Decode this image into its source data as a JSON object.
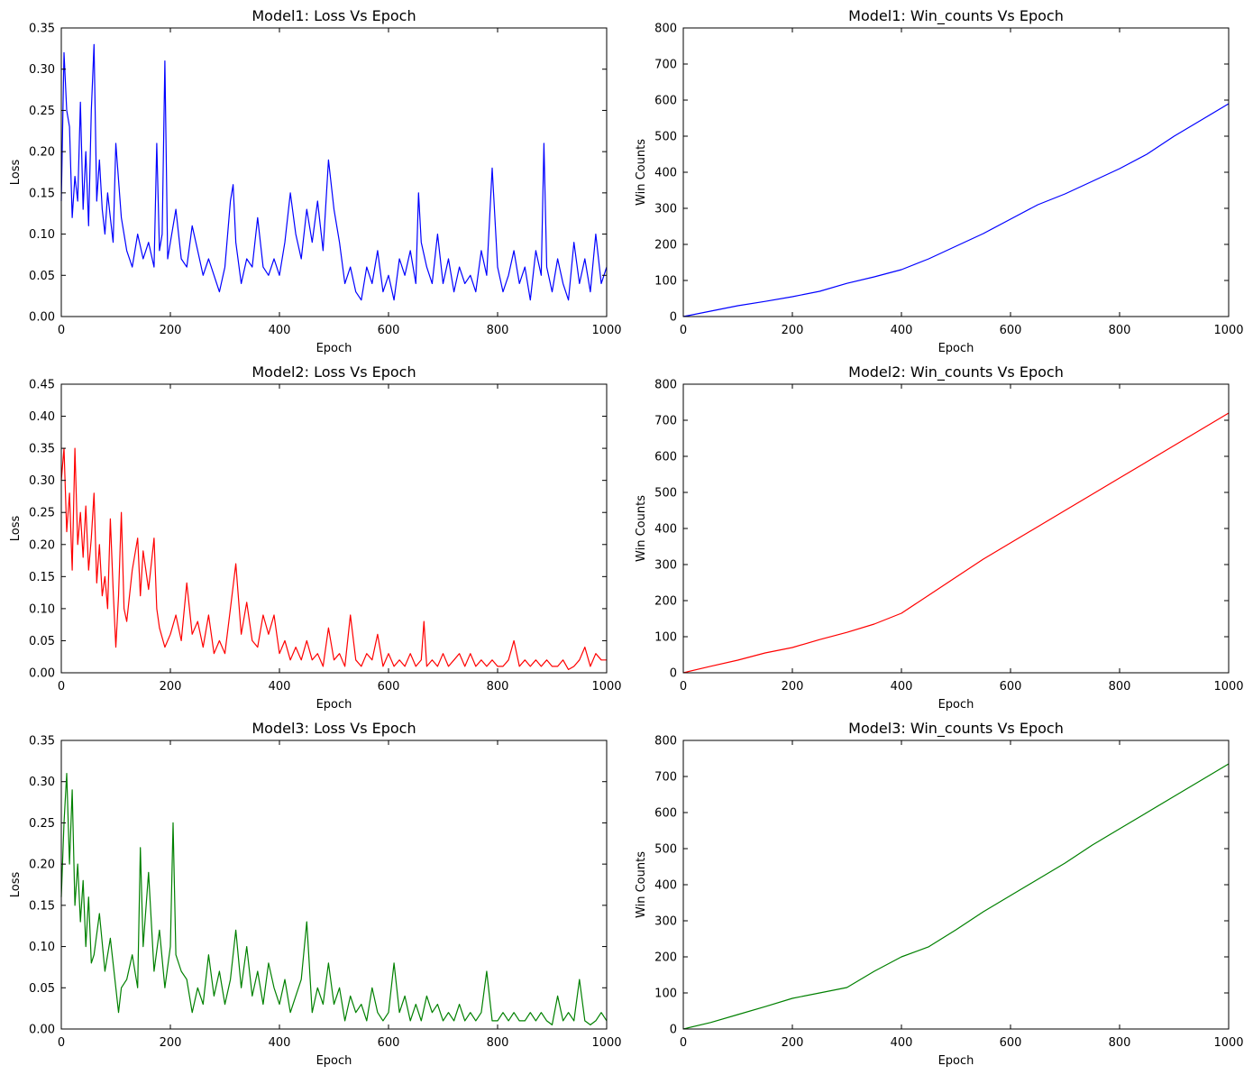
{
  "chart_data": [
    {
      "type": "line",
      "title": "Model1: Loss Vs Epoch",
      "xlabel": "Epoch",
      "ylabel": "Loss",
      "xlim": [
        0,
        1000
      ],
      "ylim": [
        0,
        0.35
      ],
      "xticks": [
        "0",
        "200",
        "400",
        "600",
        "800",
        "1000"
      ],
      "yticks": [
        "0.00",
        "0.05",
        "0.10",
        "0.15",
        "0.20",
        "0.25",
        "0.30",
        "0.35"
      ],
      "grid": false,
      "series": [
        {
          "color": "#0000ff",
          "x": [
            0,
            5,
            10,
            15,
            20,
            25,
            30,
            35,
            40,
            45,
            50,
            55,
            60,
            65,
            70,
            75,
            80,
            85,
            90,
            95,
            100,
            110,
            120,
            130,
            140,
            150,
            160,
            170,
            175,
            180,
            185,
            190,
            195,
            200,
            210,
            220,
            230,
            240,
            250,
            260,
            270,
            280,
            290,
            300,
            310,
            315,
            320,
            330,
            340,
            350,
            360,
            370,
            380,
            390,
            400,
            410,
            420,
            430,
            440,
            450,
            460,
            470,
            480,
            490,
            500,
            510,
            520,
            530,
            540,
            550,
            560,
            570,
            580,
            590,
            600,
            610,
            620,
            630,
            640,
            650,
            655,
            660,
            670,
            680,
            690,
            700,
            710,
            720,
            730,
            740,
            750,
            760,
            770,
            780,
            790,
            800,
            810,
            820,
            830,
            840,
            850,
            860,
            870,
            880,
            885,
            890,
            900,
            910,
            920,
            930,
            940,
            950,
            960,
            970,
            980,
            990,
            1000
          ],
          "y": [
            0.14,
            0.32,
            0.25,
            0.23,
            0.12,
            0.17,
            0.14,
            0.26,
            0.13,
            0.2,
            0.11,
            0.25,
            0.33,
            0.14,
            0.19,
            0.13,
            0.1,
            0.15,
            0.12,
            0.09,
            0.21,
            0.12,
            0.08,
            0.06,
            0.1,
            0.07,
            0.09,
            0.06,
            0.21,
            0.08,
            0.1,
            0.31,
            0.07,
            0.09,
            0.13,
            0.07,
            0.06,
            0.11,
            0.08,
            0.05,
            0.07,
            0.05,
            0.03,
            0.06,
            0.14,
            0.16,
            0.09,
            0.04,
            0.07,
            0.06,
            0.12,
            0.06,
            0.05,
            0.07,
            0.05,
            0.09,
            0.15,
            0.1,
            0.07,
            0.13,
            0.09,
            0.14,
            0.08,
            0.19,
            0.13,
            0.09,
            0.04,
            0.06,
            0.03,
            0.02,
            0.06,
            0.04,
            0.08,
            0.03,
            0.05,
            0.02,
            0.07,
            0.05,
            0.08,
            0.04,
            0.15,
            0.09,
            0.06,
            0.04,
            0.1,
            0.04,
            0.07,
            0.03,
            0.06,
            0.04,
            0.05,
            0.03,
            0.08,
            0.05,
            0.18,
            0.06,
            0.03,
            0.05,
            0.08,
            0.04,
            0.06,
            0.02,
            0.08,
            0.05,
            0.21,
            0.06,
            0.03,
            0.07,
            0.04,
            0.02,
            0.09,
            0.04,
            0.07,
            0.03,
            0.1,
            0.04,
            0.06
          ]
        }
      ]
    },
    {
      "type": "line",
      "title": "Model1: Win_counts Vs Epoch",
      "xlabel": "Epoch",
      "ylabel": "Win Counts",
      "xlim": [
        0,
        1000
      ],
      "ylim": [
        0,
        800
      ],
      "xticks": [
        "0",
        "200",
        "400",
        "600",
        "800",
        "1000"
      ],
      "yticks": [
        "0",
        "100",
        "200",
        "300",
        "400",
        "500",
        "600",
        "700",
        "800"
      ],
      "grid": false,
      "series": [
        {
          "color": "#0000ff",
          "x": [
            0,
            50,
            100,
            150,
            200,
            250,
            300,
            350,
            400,
            450,
            500,
            550,
            600,
            650,
            700,
            750,
            800,
            850,
            900,
            950,
            1000
          ],
          "y": [
            0,
            15,
            30,
            42,
            55,
            70,
            92,
            110,
            130,
            160,
            195,
            230,
            270,
            310,
            340,
            375,
            410,
            450,
            500,
            545,
            590
          ]
        }
      ]
    },
    {
      "type": "line",
      "title": "Model2: Loss Vs Epoch",
      "xlabel": "Epoch",
      "ylabel": "Loss",
      "xlim": [
        0,
        1000
      ],
      "ylim": [
        0,
        0.45
      ],
      "xticks": [
        "0",
        "200",
        "400",
        "600",
        "800",
        "1000"
      ],
      "yticks": [
        "0.00",
        "0.05",
        "0.10",
        "0.15",
        "0.20",
        "0.25",
        "0.30",
        "0.35",
        "0.40",
        "0.45"
      ],
      "grid": false,
      "series": [
        {
          "color": "#ff0000",
          "x": [
            0,
            5,
            10,
            15,
            20,
            25,
            30,
            35,
            40,
            45,
            50,
            55,
            60,
            65,
            70,
            75,
            80,
            85,
            90,
            95,
            100,
            105,
            110,
            115,
            120,
            130,
            140,
            145,
            150,
            160,
            170,
            175,
            180,
            190,
            200,
            210,
            220,
            230,
            240,
            250,
            260,
            270,
            280,
            290,
            300,
            310,
            320,
            330,
            340,
            350,
            360,
            370,
            380,
            390,
            400,
            410,
            420,
            430,
            440,
            450,
            460,
            470,
            480,
            490,
            500,
            510,
            520,
            530,
            540,
            550,
            560,
            570,
            580,
            590,
            600,
            610,
            620,
            630,
            640,
            650,
            660,
            665,
            670,
            680,
            690,
            700,
            710,
            720,
            730,
            740,
            750,
            760,
            770,
            780,
            790,
            800,
            810,
            820,
            830,
            840,
            850,
            860,
            870,
            880,
            890,
            900,
            910,
            920,
            930,
            940,
            950,
            960,
            970,
            980,
            990,
            1000
          ],
          "y": [
            0.3,
            0.35,
            0.22,
            0.28,
            0.16,
            0.35,
            0.2,
            0.25,
            0.18,
            0.26,
            0.16,
            0.21,
            0.28,
            0.14,
            0.2,
            0.12,
            0.15,
            0.1,
            0.24,
            0.13,
            0.04,
            0.12,
            0.25,
            0.1,
            0.08,
            0.16,
            0.21,
            0.12,
            0.19,
            0.13,
            0.21,
            0.1,
            0.07,
            0.04,
            0.06,
            0.09,
            0.05,
            0.14,
            0.06,
            0.08,
            0.04,
            0.09,
            0.03,
            0.05,
            0.03,
            0.1,
            0.17,
            0.06,
            0.11,
            0.05,
            0.04,
            0.09,
            0.06,
            0.09,
            0.03,
            0.05,
            0.02,
            0.04,
            0.02,
            0.05,
            0.02,
            0.03,
            0.01,
            0.07,
            0.02,
            0.03,
            0.01,
            0.09,
            0.02,
            0.01,
            0.03,
            0.02,
            0.06,
            0.01,
            0.03,
            0.01,
            0.02,
            0.01,
            0.03,
            0.01,
            0.02,
            0.08,
            0.01,
            0.02,
            0.01,
            0.03,
            0.01,
            0.02,
            0.03,
            0.01,
            0.03,
            0.01,
            0.02,
            0.01,
            0.02,
            0.01,
            0.01,
            0.02,
            0.05,
            0.01,
            0.02,
            0.01,
            0.02,
            0.01,
            0.02,
            0.01,
            0.01,
            0.02,
            0.005,
            0.01,
            0.02,
            0.04,
            0.01,
            0.03,
            0.02,
            0.02
          ]
        }
      ]
    },
    {
      "type": "line",
      "title": "Model2: Win_counts Vs Epoch",
      "xlabel": "Epoch",
      "ylabel": "Win Counts",
      "xlim": [
        0,
        1000
      ],
      "ylim": [
        0,
        800
      ],
      "xticks": [
        "0",
        "200",
        "400",
        "600",
        "800",
        "1000"
      ],
      "yticks": [
        "0",
        "100",
        "200",
        "300",
        "400",
        "500",
        "600",
        "700",
        "800"
      ],
      "grid": false,
      "series": [
        {
          "color": "#ff0000",
          "x": [
            0,
            50,
            100,
            150,
            200,
            250,
            300,
            350,
            400,
            450,
            500,
            550,
            600,
            650,
            700,
            750,
            800,
            850,
            900,
            950,
            1000
          ],
          "y": [
            0,
            18,
            35,
            55,
            70,
            92,
            112,
            135,
            165,
            215,
            265,
            315,
            360,
            405,
            450,
            495,
            540,
            585,
            630,
            675,
            720
          ]
        }
      ]
    },
    {
      "type": "line",
      "title": "Model3: Loss Vs Epoch",
      "xlabel": "Epoch",
      "ylabel": "Loss",
      "xlim": [
        0,
        1000
      ],
      "ylim": [
        0,
        0.35
      ],
      "xticks": [
        "0",
        "200",
        "400",
        "600",
        "800",
        "1000"
      ],
      "yticks": [
        "0.00",
        "0.05",
        "0.10",
        "0.15",
        "0.20",
        "0.25",
        "0.30",
        "0.35"
      ],
      "grid": false,
      "series": [
        {
          "color": "#008000",
          "x": [
            0,
            5,
            10,
            15,
            20,
            25,
            30,
            35,
            40,
            45,
            50,
            55,
            60,
            70,
            80,
            90,
            100,
            105,
            110,
            120,
            130,
            140,
            145,
            150,
            160,
            170,
            180,
            190,
            200,
            205,
            210,
            220,
            230,
            240,
            250,
            260,
            270,
            280,
            290,
            300,
            310,
            320,
            330,
            340,
            350,
            360,
            370,
            380,
            390,
            400,
            410,
            420,
            430,
            440,
            450,
            460,
            470,
            480,
            490,
            500,
            510,
            520,
            530,
            540,
            550,
            560,
            570,
            580,
            590,
            600,
            610,
            620,
            630,
            640,
            650,
            660,
            670,
            680,
            690,
            700,
            710,
            720,
            730,
            740,
            750,
            760,
            770,
            780,
            790,
            800,
            810,
            820,
            830,
            840,
            850,
            860,
            870,
            880,
            890,
            900,
            910,
            920,
            930,
            940,
            950,
            960,
            970,
            980,
            990,
            1000
          ],
          "y": [
            0.16,
            0.25,
            0.31,
            0.2,
            0.29,
            0.15,
            0.2,
            0.13,
            0.18,
            0.1,
            0.16,
            0.08,
            0.09,
            0.14,
            0.07,
            0.11,
            0.05,
            0.02,
            0.05,
            0.06,
            0.09,
            0.05,
            0.22,
            0.1,
            0.19,
            0.07,
            0.12,
            0.05,
            0.1,
            0.25,
            0.09,
            0.07,
            0.06,
            0.02,
            0.05,
            0.03,
            0.09,
            0.04,
            0.07,
            0.03,
            0.06,
            0.12,
            0.05,
            0.1,
            0.04,
            0.07,
            0.03,
            0.08,
            0.05,
            0.03,
            0.06,
            0.02,
            0.04,
            0.06,
            0.13,
            0.02,
            0.05,
            0.03,
            0.08,
            0.03,
            0.05,
            0.01,
            0.04,
            0.02,
            0.03,
            0.01,
            0.05,
            0.02,
            0.01,
            0.02,
            0.08,
            0.02,
            0.04,
            0.01,
            0.03,
            0.01,
            0.04,
            0.02,
            0.03,
            0.01,
            0.02,
            0.01,
            0.03,
            0.01,
            0.02,
            0.01,
            0.02,
            0.07,
            0.01,
            0.01,
            0.02,
            0.01,
            0.02,
            0.01,
            0.01,
            0.02,
            0.01,
            0.02,
            0.01,
            0.005,
            0.04,
            0.01,
            0.02,
            0.01,
            0.06,
            0.01,
            0.005,
            0.01,
            0.02,
            0.01
          ]
        }
      ]
    },
    {
      "type": "line",
      "title": "Model3: Win_counts Vs Epoch",
      "xlabel": "Epoch",
      "ylabel": "Win Counts",
      "xlim": [
        0,
        1000
      ],
      "ylim": [
        0,
        800
      ],
      "xticks": [
        "0",
        "200",
        "400",
        "600",
        "800",
        "1000"
      ],
      "yticks": [
        "0",
        "100",
        "200",
        "300",
        "400",
        "500",
        "600",
        "700",
        "800"
      ],
      "grid": false,
      "series": [
        {
          "color": "#008000",
          "x": [
            0,
            50,
            100,
            150,
            200,
            250,
            300,
            350,
            400,
            450,
            500,
            550,
            600,
            650,
            700,
            750,
            800,
            850,
            900,
            950,
            1000
          ],
          "y": [
            0,
            18,
            40,
            62,
            85,
            100,
            115,
            160,
            200,
            228,
            275,
            325,
            370,
            415,
            460,
            510,
            555,
            600,
            645,
            690,
            735
          ]
        }
      ]
    }
  ]
}
